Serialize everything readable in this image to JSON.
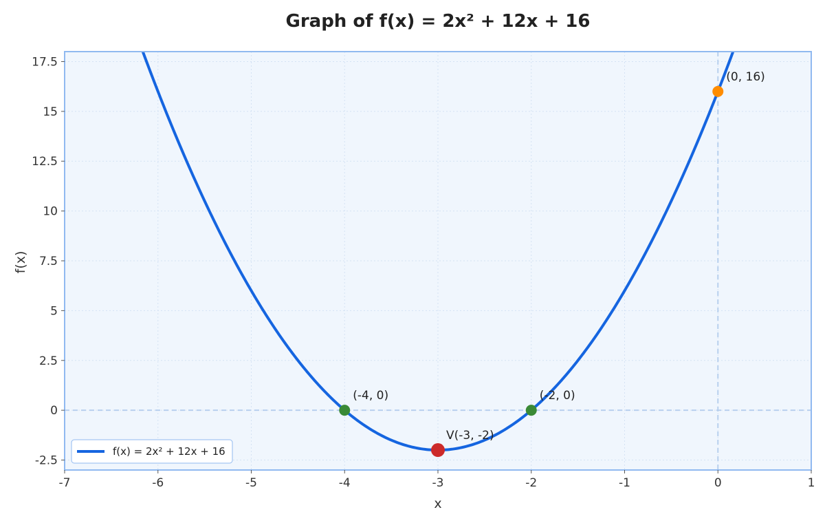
{
  "chart_data": {
    "type": "line",
    "title": "Graph of f(x) = 2x² + 12x + 16",
    "xlabel": "x",
    "ylabel": "f(x)",
    "xlim": [
      -7,
      1
    ],
    "ylim": [
      -3,
      18
    ],
    "x_ticks": [
      "-7",
      "-6",
      "-5",
      "-4",
      "-3",
      "-2",
      "-1",
      "0",
      "1"
    ],
    "y_ticks": [
      "-2.5",
      "0",
      "2.5",
      "5",
      "7.5",
      "10",
      "12.5",
      "15",
      "17.5"
    ],
    "grid": true,
    "legend_position": "lower-left",
    "series": [
      {
        "name": "f(x) = 2x² + 12x + 16",
        "function": {
          "a": 2,
          "b": 12,
          "c": 16
        },
        "x_range": [
          -7,
          1
        ],
        "color": "#1565e0"
      }
    ],
    "points": [
      {
        "x": -4,
        "y": 0,
        "label": "(-4, 0)",
        "color": "#3a8a36",
        "kind": "root"
      },
      {
        "x": -2,
        "y": 0,
        "label": "(-2, 0)",
        "color": "#3a8a36",
        "kind": "root"
      },
      {
        "x": -3,
        "y": -2,
        "label": "V(-3, -2)",
        "color": "#cc2a2a",
        "kind": "vertex"
      },
      {
        "x": 0,
        "y": 16,
        "label": "(0, 16)",
        "color": "#ff8c00",
        "kind": "y-intercept"
      }
    ],
    "reference_lines": [
      {
        "axis": "y",
        "value": 0
      },
      {
        "axis": "x",
        "value": 0
      }
    ],
    "colors": {
      "plot_background": "#f0f6fd",
      "frame": "#90b9f0",
      "grid": "#d4e2f4",
      "reference": "#b8d0ee"
    }
  }
}
